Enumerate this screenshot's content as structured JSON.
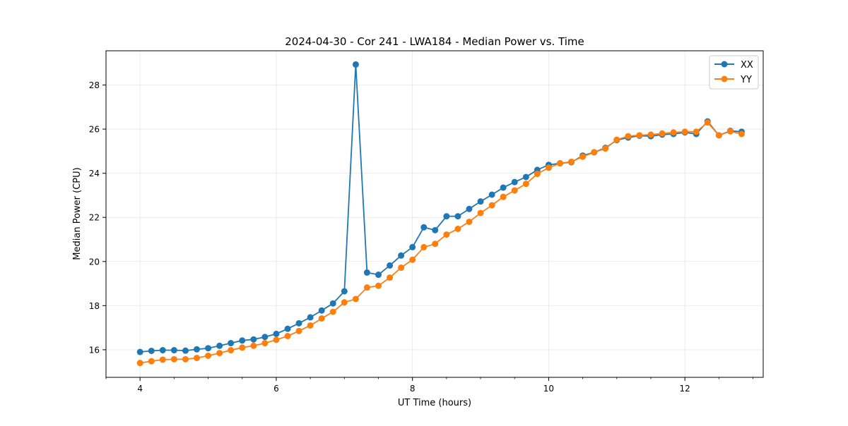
{
  "chart_data": {
    "type": "line",
    "title": "2024-04-30 - Cor 241 - LWA184 - Median Power vs. Time",
    "xlabel": "UT Time (hours)",
    "ylabel": "Median Power (CPU)",
    "xlim": [
      3.5,
      13.15
    ],
    "ylim": [
      14.75,
      29.55
    ],
    "xticks": [
      4,
      6,
      8,
      10,
      12
    ],
    "xtick_labels": [
      "4",
      "6",
      "8",
      "10",
      "12"
    ],
    "yticks": [
      16,
      18,
      20,
      22,
      24,
      26,
      28
    ],
    "ytick_labels": [
      "16",
      "18",
      "20",
      "22",
      "24",
      "26",
      "28"
    ],
    "grid": true,
    "legend_position": "top-right",
    "x": [
      4.0,
      4.167,
      4.333,
      4.5,
      4.667,
      4.833,
      5.0,
      5.167,
      5.333,
      5.5,
      5.667,
      5.833,
      6.0,
      6.167,
      6.333,
      6.5,
      6.667,
      6.833,
      7.0,
      7.167,
      7.333,
      7.5,
      7.667,
      7.833,
      8.0,
      8.167,
      8.333,
      8.5,
      8.667,
      8.833,
      9.0,
      9.167,
      9.333,
      9.5,
      9.667,
      9.833,
      10.0,
      10.167,
      10.333,
      10.5,
      10.667,
      10.833,
      11.0,
      11.167,
      11.333,
      11.5,
      11.667,
      11.833,
      12.0,
      12.167,
      12.333,
      12.5,
      12.667,
      12.833
    ],
    "series": [
      {
        "name": "XX",
        "color": "#1f77b4",
        "values": [
          15.9,
          15.95,
          15.98,
          15.98,
          15.96,
          16.02,
          16.07,
          16.18,
          16.3,
          16.42,
          16.47,
          16.58,
          16.72,
          16.95,
          17.2,
          17.47,
          17.78,
          18.1,
          18.65,
          28.93,
          19.5,
          19.4,
          19.82,
          20.27,
          20.65,
          21.55,
          21.42,
          22.05,
          22.05,
          22.38,
          22.72,
          23.03,
          23.35,
          23.6,
          23.83,
          24.15,
          24.38,
          24.45,
          24.5,
          24.8,
          24.95,
          25.15,
          25.5,
          25.62,
          25.7,
          25.68,
          25.75,
          25.78,
          25.85,
          25.78,
          26.35,
          25.72,
          25.92,
          25.88
        ]
      },
      {
        "name": "YY",
        "color": "#ff7f0e",
        "values": [
          15.4,
          15.48,
          15.55,
          15.57,
          15.57,
          15.63,
          15.73,
          15.85,
          15.98,
          16.1,
          16.18,
          16.3,
          16.45,
          16.62,
          16.85,
          17.1,
          17.42,
          17.72,
          18.15,
          18.3,
          18.82,
          18.9,
          19.27,
          19.72,
          20.08,
          20.65,
          20.8,
          21.22,
          21.48,
          21.8,
          22.2,
          22.55,
          22.93,
          23.22,
          23.52,
          23.97,
          24.25,
          24.45,
          24.52,
          24.75,
          24.95,
          25.12,
          25.52,
          25.68,
          25.72,
          25.75,
          25.8,
          25.85,
          25.88,
          25.88,
          26.3,
          25.72,
          25.9,
          25.78
        ]
      }
    ]
  }
}
